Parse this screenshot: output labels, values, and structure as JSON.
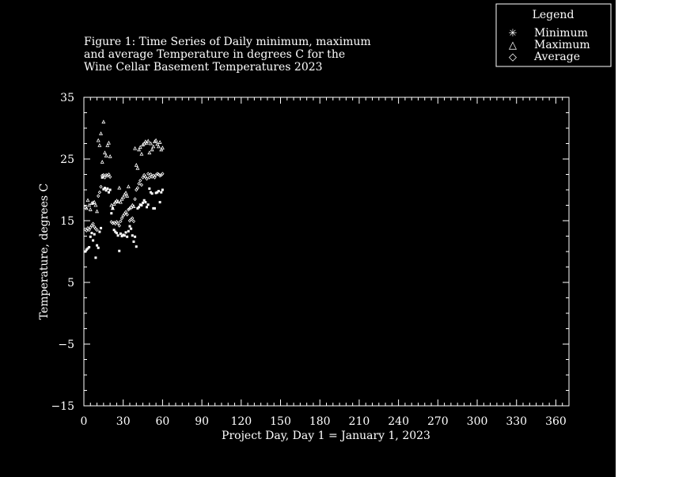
{
  "chart_data": {
    "type": "scatter",
    "title_lines": [
      "Figure 1: Time Series of Daily minimum, maximum",
      "and average Temperature in degrees C for the",
      "Wine Cellar Basement Temperatures 2023"
    ],
    "xlabel": "Project Day, Day 1 = January 1, 2023",
    "ylabel": "Temperature, degrees C",
    "xlim": [
      0,
      370
    ],
    "ylim": [
      -15,
      35
    ],
    "xticks": [
      0,
      30,
      60,
      90,
      120,
      150,
      180,
      210,
      240,
      270,
      300,
      330,
      360
    ],
    "yticks": [
      -15,
      -5,
      5,
      15,
      25,
      35
    ],
    "yticklabels": [
      "−15",
      "−5",
      "5",
      "15",
      "25",
      "35"
    ],
    "legend": {
      "title": "Legend",
      "position": "top-right",
      "entries": [
        {
          "marker": "✳",
          "label": "Minimum"
        },
        {
          "marker": "△",
          "label": "Maximum"
        },
        {
          "marker": "◇",
          "label": "Average"
        }
      ]
    },
    "series": [
      {
        "name": "Minimum",
        "x": [
          1,
          2,
          3,
          4,
          5,
          6,
          7,
          8,
          9,
          10,
          11,
          12,
          13,
          14,
          15,
          16,
          17,
          18,
          19,
          20,
          21,
          22,
          23,
          24,
          25,
          26,
          27,
          28,
          29,
          30,
          31,
          32,
          33,
          34,
          35,
          36,
          37,
          38,
          39,
          40,
          41,
          42,
          43,
          44,
          45,
          46,
          47,
          48,
          49,
          50,
          51,
          52,
          53,
          54,
          55,
          56,
          57,
          58,
          59,
          60
        ],
        "y": [
          10.0,
          10.3,
          10.5,
          10.7,
          12.4,
          13.0,
          11.8,
          12.8,
          9.0,
          11.0,
          10.6,
          13.2,
          13.8,
          22.0,
          20.1,
          20.3,
          19.9,
          20.2,
          19.6,
          20.0,
          16.2,
          17.0,
          13.5,
          13.2,
          13.0,
          12.6,
          10.1,
          12.9,
          12.5,
          12.7,
          12.6,
          13.1,
          12.4,
          13.3,
          14.1,
          13.7,
          12.6,
          11.6,
          12.4,
          10.8,
          17.0,
          17.2,
          17.6,
          17.5,
          17.9,
          18.3,
          18.0,
          17.2,
          17.6,
          20.2,
          19.6,
          19.4,
          17.0,
          17.0,
          19.5,
          19.6,
          19.8,
          18.0,
          19.6,
          20.0
        ]
      },
      {
        "name": "Maximum",
        "x": [
          1,
          2,
          3,
          4,
          5,
          6,
          7,
          8,
          9,
          10,
          11,
          12,
          13,
          14,
          15,
          16,
          17,
          18,
          19,
          20,
          21,
          22,
          23,
          24,
          25,
          26,
          27,
          28,
          29,
          30,
          31,
          32,
          33,
          34,
          35,
          36,
          37,
          38,
          39,
          40,
          41,
          42,
          43,
          44,
          45,
          46,
          47,
          48,
          49,
          50,
          51,
          52,
          53,
          54,
          55,
          56,
          57,
          58,
          59,
          60
        ],
        "y": [
          17.2,
          17.0,
          18.3,
          17.5,
          16.8,
          17.8,
          17.9,
          18.0,
          17.5,
          16.5,
          28.0,
          27.2,
          29.1,
          24.5,
          31.0,
          26.0,
          25.5,
          27.2,
          27.6,
          25.4,
          17.5,
          17.0,
          17.7,
          18.0,
          18.2,
          18.1,
          20.3,
          18.0,
          18.5,
          18.8,
          19.2,
          19.5,
          19.0,
          20.5,
          17.0,
          17.2,
          17.5,
          17.3,
          26.7,
          24.0,
          23.5,
          26.5,
          26.9,
          25.8,
          27.3,
          27.5,
          27.8,
          27.6,
          27.9,
          26.0,
          27.5,
          26.5,
          27.0,
          27.8,
          28.0,
          27.4,
          27.0,
          27.7,
          26.5,
          26.8
        ]
      },
      {
        "name": "Average",
        "x": [
          1,
          2,
          3,
          4,
          5,
          6,
          7,
          8,
          9,
          10,
          11,
          12,
          13,
          14,
          15,
          16,
          17,
          18,
          19,
          20,
          21,
          22,
          23,
          24,
          25,
          26,
          27,
          28,
          29,
          30,
          31,
          32,
          33,
          34,
          35,
          36,
          37,
          38,
          39,
          40,
          41,
          42,
          43,
          44,
          45,
          46,
          47,
          48,
          49,
          50,
          51,
          52,
          53,
          54,
          55,
          56,
          57,
          58,
          59,
          60
        ],
        "y": [
          13.6,
          13.4,
          13.8,
          13.5,
          13.9,
          14.2,
          14.5,
          14.0,
          13.7,
          13.5,
          19.0,
          19.6,
          20.5,
          22.3,
          22.4,
          22.0,
          22.4,
          22.3,
          22.5,
          22.1,
          14.8,
          14.6,
          14.7,
          14.5,
          14.8,
          14.6,
          14.2,
          14.9,
          15.4,
          15.8,
          16.1,
          16.4,
          16.0,
          16.8,
          15.0,
          15.2,
          15.4,
          14.9,
          18.5,
          20.0,
          20.3,
          21.0,
          21.5,
          20.8,
          22.0,
          22.4,
          22.1,
          21.8,
          22.6,
          22.0,
          22.5,
          22.1,
          22.3,
          22.0,
          22.4,
          22.6,
          22.5,
          22.3,
          22.4,
          22.6
        ]
      }
    ]
  }
}
